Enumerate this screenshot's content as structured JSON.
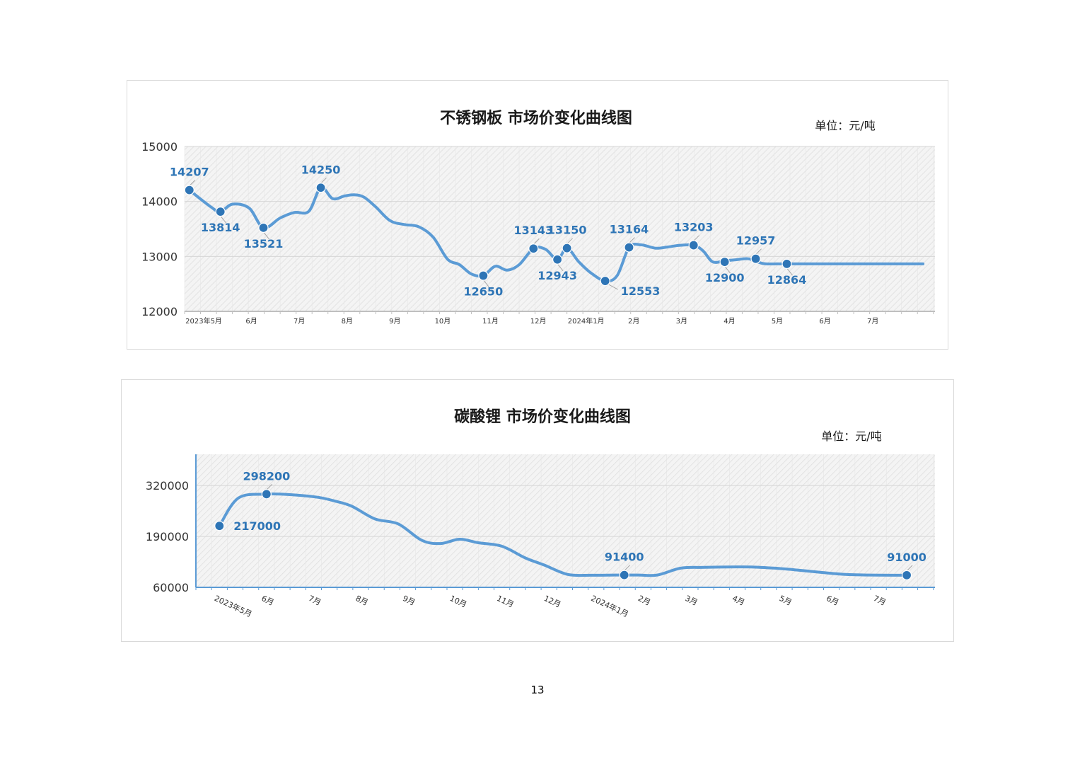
{
  "page_number": "13",
  "colors": {
    "line": "#5b9bd5",
    "marker": "#2e75b6",
    "label": "#2e75b6",
    "grid": "#e0e0e0",
    "plot_bg": "#f4f4f4",
    "axis": "#5b9bd5"
  },
  "chart_data": [
    {
      "type": "line",
      "title": "不锈钢板 市场价变化曲线图",
      "unit": "单位：元/吨",
      "xlabel": "",
      "ylabel": "",
      "ylim": [
        12000,
        15000
      ],
      "yticks": [
        "15000",
        "14000",
        "13000",
        "12000"
      ],
      "yticks_values": [
        15000,
        14000,
        13000,
        12000
      ],
      "xticks": [
        "2023年5月",
        "6月",
        "7月",
        "8月",
        "9月",
        "10月",
        "11月",
        "12月",
        "2024年1月",
        "2月",
        "3月",
        "4月",
        "5月",
        "6月",
        "7月"
      ],
      "xlim": [
        0,
        15.7
      ],
      "grid": true,
      "legend": "none",
      "series": [
        {
          "x": [
            0.1,
            0.55,
            0.75,
            1.0,
            1.35,
            1.65,
            2.0,
            2.3,
            2.6,
            2.85,
            3.1,
            3.35,
            3.55,
            3.75,
            4.0,
            4.3,
            4.6,
            4.9,
            5.2,
            5.5,
            5.75,
            6.0,
            6.25,
            6.5,
            6.75,
            7.0,
            7.3,
            7.55,
            7.8,
            8.0,
            8.25,
            8.5,
            8.8,
            9.05,
            9.3,
            9.55,
            9.85,
            10.1,
            10.35,
            10.65,
            10.85,
            11.05,
            11.3,
            11.55,
            11.8,
            12.1,
            12.4,
            12.75,
            13.1,
            13.45,
            13.7,
            14.0,
            14.35,
            14.7,
            14.95,
            15.2,
            15.45
          ],
          "y": [
            14207,
            13900,
            13814,
            13950,
            13880,
            13521,
            13700,
            13800,
            13820,
            14250,
            14050,
            14100,
            14120,
            14080,
            13900,
            13650,
            13580,
            13540,
            13350,
            12950,
            12850,
            12680,
            12650,
            12820,
            12750,
            12850,
            13143,
            13130,
            12943,
            13150,
            12900,
            12700,
            12553,
            12650,
            13164,
            13210,
            13150,
            13170,
            13200,
            13203,
            13100,
            12900,
            12920,
            12940,
            12957,
            12870,
            12864,
            12864,
            12864,
            12864,
            12864,
            12864,
            12864,
            12864,
            12864,
            12864,
            12864
          ]
        }
      ],
      "points": [
        {
          "x": 0.1,
          "y": 14207,
          "label": "14207",
          "pos": "above"
        },
        {
          "x": 0.75,
          "y": 13814,
          "label": "13814",
          "pos": "below"
        },
        {
          "x": 1.65,
          "y": 13521,
          "label": "13521",
          "pos": "below"
        },
        {
          "x": 2.85,
          "y": 14250,
          "label": "14250",
          "pos": "above"
        },
        {
          "x": 6.25,
          "y": 12650,
          "label": "12650",
          "pos": "below"
        },
        {
          "x": 7.3,
          "y": 13143,
          "label": "13143",
          "pos": "above"
        },
        {
          "x": 7.8,
          "y": 12943,
          "label": "12943",
          "pos": "below"
        },
        {
          "x": 8.0,
          "y": 13150,
          "label": "13150",
          "pos": "above"
        },
        {
          "x": 8.8,
          "y": 12553,
          "label": "12553",
          "pos": "belowright"
        },
        {
          "x": 9.3,
          "y": 13164,
          "label": "13164",
          "pos": "above"
        },
        {
          "x": 10.65,
          "y": 13203,
          "label": "13203",
          "pos": "above"
        },
        {
          "x": 11.3,
          "y": 12900,
          "label": "12900",
          "pos": "below"
        },
        {
          "x": 11.95,
          "y": 12957,
          "label": "12957",
          "pos": "above"
        },
        {
          "x": 12.6,
          "y": 12864,
          "label": "12864",
          "pos": "below"
        }
      ]
    },
    {
      "type": "line",
      "title": "碳酸锂 市场价变化曲线图",
      "unit": "单位：元/吨",
      "xlabel": "",
      "ylabel": "",
      "ylim": [
        60000,
        400000
      ],
      "yticks": [
        "320000",
        "190000",
        "60000"
      ],
      "yticks_values": [
        320000,
        190000,
        60000
      ],
      "xticks": [
        "2023年5月",
        "6月",
        "7月",
        "8月",
        "9月",
        "10月",
        "11月",
        "12月",
        "2024年1月",
        "2月",
        "3月",
        "4月",
        "5月",
        "6月",
        "7月"
      ],
      "xlim": [
        0,
        15.7
      ],
      "grid": true,
      "legend": "none",
      "series": [
        {
          "x": [
            0.5,
            0.9,
            1.5,
            2.0,
            2.6,
            2.9,
            3.3,
            3.8,
            4.3,
            4.8,
            5.2,
            5.6,
            6.0,
            6.5,
            7.0,
            7.4,
            7.9,
            8.4,
            8.9,
            9.4,
            9.8,
            10.3,
            10.8,
            11.3,
            11.8,
            12.3,
            12.8,
            13.3,
            13.8,
            14.3,
            14.8,
            15.1
          ],
          "y": [
            217000,
            288000,
            298200,
            297000,
            290000,
            282000,
            268000,
            235000,
            222000,
            180000,
            172000,
            183000,
            174000,
            165000,
            135000,
            117000,
            93000,
            91000,
            91400,
            91400,
            91500,
            109000,
            111000,
            112000,
            112000,
            109000,
            104000,
            98000,
            93000,
            91500,
            91000,
            91000
          ]
        }
      ],
      "points": [
        {
          "x": 0.5,
          "y": 217000,
          "label": "217000",
          "pos": "right"
        },
        {
          "x": 1.5,
          "y": 298200,
          "label": "298200",
          "pos": "above"
        },
        {
          "x": 9.1,
          "y": 91400,
          "label": "91400",
          "pos": "above"
        },
        {
          "x": 15.1,
          "y": 91000,
          "label": "91000",
          "pos": "above"
        }
      ]
    }
  ]
}
